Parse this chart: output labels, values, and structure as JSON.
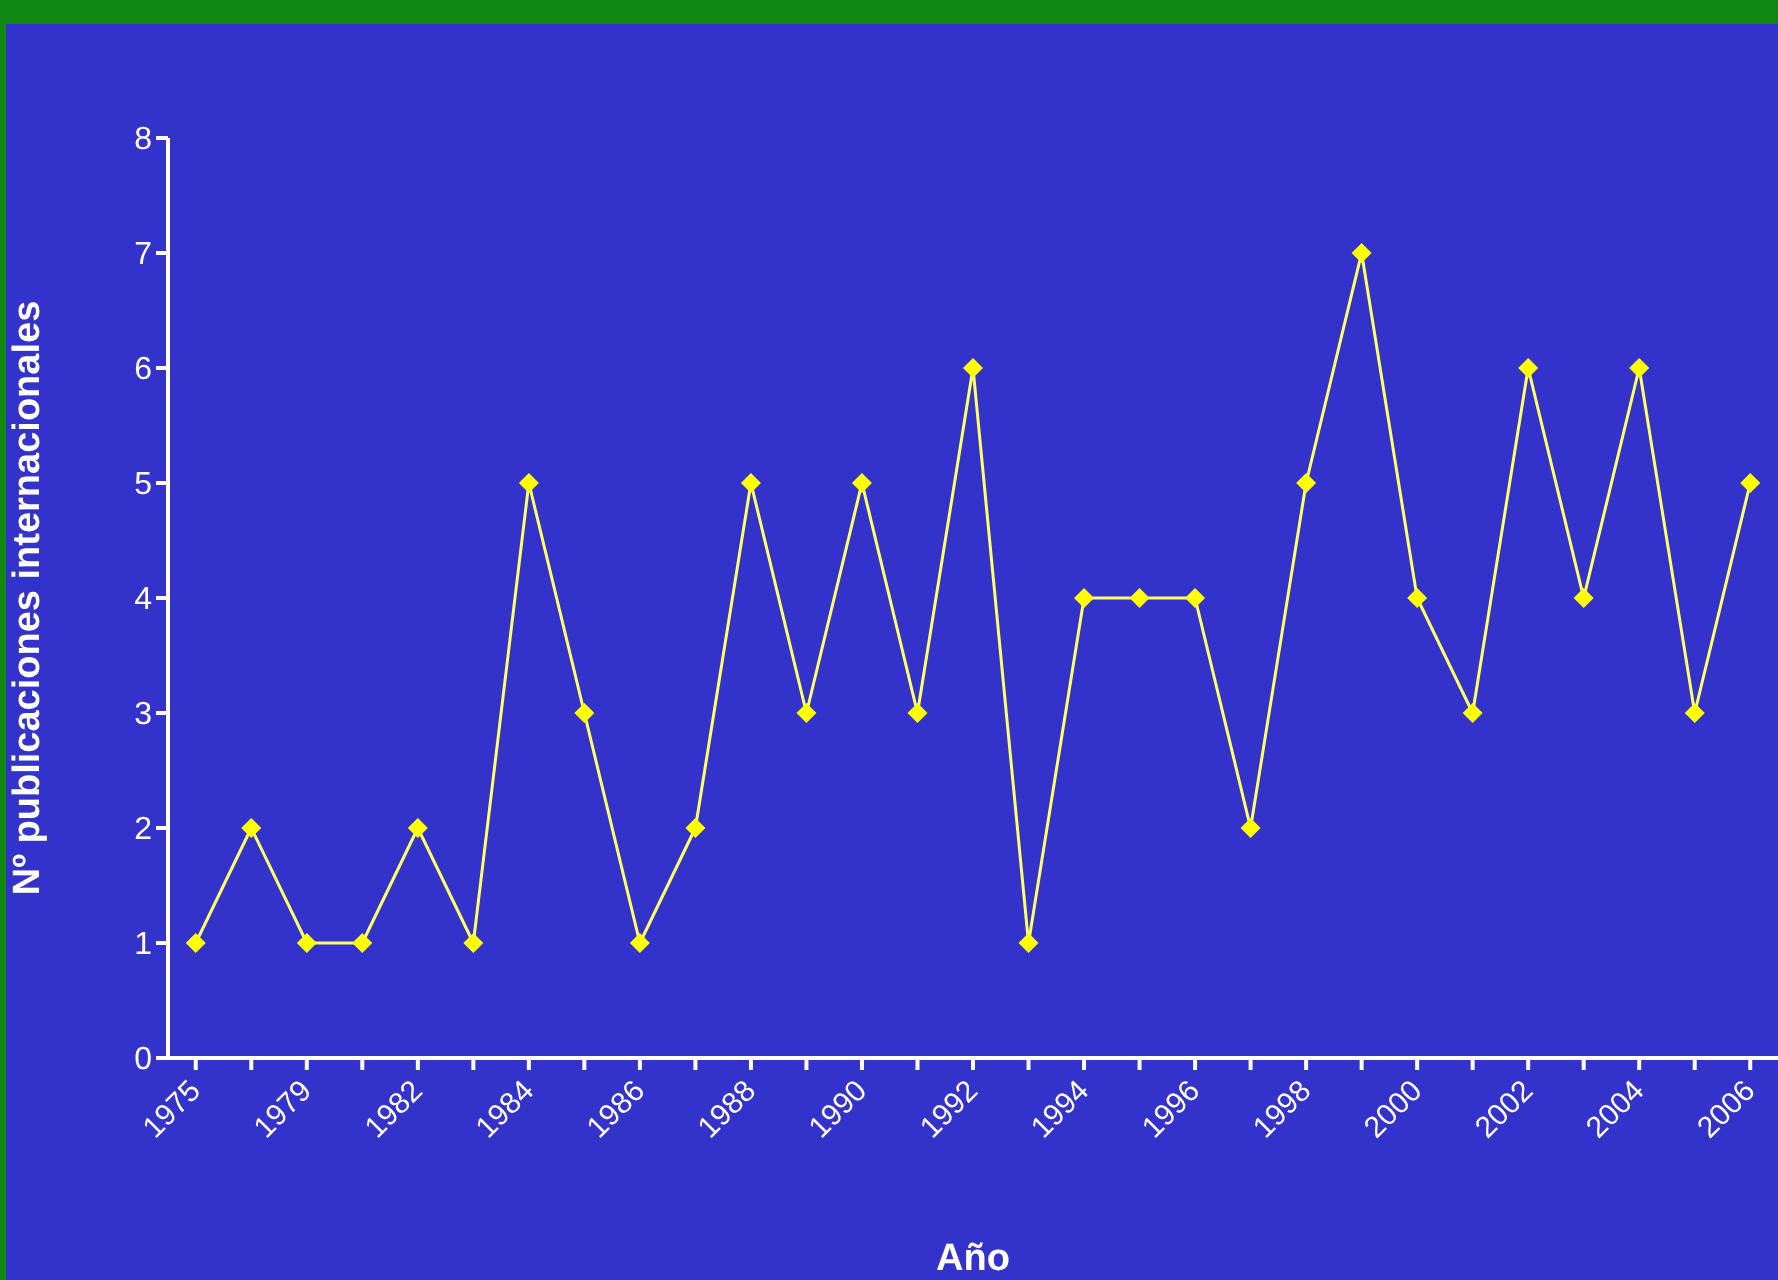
{
  "chart_data": {
    "type": "line",
    "xlabel": "Año",
    "ylabel": "Nº publicaciones internacionales",
    "categories": [
      "1975",
      null,
      "1979",
      null,
      "1982",
      null,
      "1984",
      null,
      "1986",
      null,
      "1988",
      null,
      "1990",
      null,
      "1992",
      null,
      "1994",
      null,
      "1996",
      null,
      "1998",
      null,
      "2000",
      null,
      "2002",
      null,
      "2004",
      null,
      "2006"
    ],
    "series": [
      {
        "color": "#ffff66",
        "values": [
          1,
          2,
          1,
          1,
          2,
          1,
          5,
          3,
          1,
          2,
          5,
          3,
          5,
          3,
          6,
          1,
          4,
          4,
          4,
          2,
          5,
          7,
          4,
          3,
          6,
          4,
          6,
          3,
          5
        ]
      }
    ],
    "ylim": [
      0,
      8
    ],
    "yticks": [
      0,
      1,
      2,
      3,
      4,
      5,
      6,
      7,
      8
    ],
    "marker": "diamond",
    "line_style": "solid"
  }
}
